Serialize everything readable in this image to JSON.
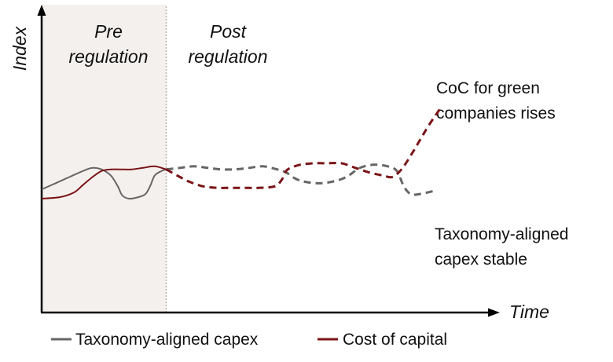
{
  "chart_data": {
    "type": "line",
    "title": "",
    "xlabel": "Time",
    "ylabel": "Index",
    "xlim": [
      0,
      100
    ],
    "ylim": [
      0,
      100
    ],
    "grid": false,
    "legend_position": "bottom",
    "phases": [
      {
        "name": "pre",
        "label_line1": "Pre",
        "label_line2": "regulation",
        "x_start": 0,
        "x_end": 27
      },
      {
        "name": "post",
        "label_line1": "Post",
        "label_line2": "regulation",
        "x_start": 27,
        "x_end": 100
      }
    ],
    "annotations": [
      {
        "name": "coc-annotation",
        "lines": [
          "CoC for green",
          "companies rises"
        ]
      },
      {
        "name": "capex-annotation",
        "lines": [
          "Taxonomy-aligned",
          "capex stable"
        ]
      }
    ],
    "series": [
      {
        "name": "Taxonomy-aligned capex",
        "color": "#666666",
        "points": [
          [
            0,
            40
          ],
          [
            3,
            42
          ],
          [
            6,
            44
          ],
          [
            9,
            46
          ],
          [
            11,
            47
          ],
          [
            13,
            46.5
          ],
          [
            15,
            44.5
          ],
          [
            16.5,
            41
          ],
          [
            17.5,
            38
          ],
          [
            19,
            37
          ],
          [
            21,
            37.5
          ],
          [
            22.5,
            38.5
          ],
          [
            23.5,
            41
          ],
          [
            24.5,
            44.5
          ],
          [
            26,
            46
          ],
          [
            27,
            46.5
          ],
          [
            30,
            47
          ],
          [
            33,
            47.5
          ],
          [
            36,
            47
          ],
          [
            39,
            46.5
          ],
          [
            42,
            46.5
          ],
          [
            45,
            47
          ],
          [
            48,
            47.5
          ],
          [
            51,
            46.5
          ],
          [
            53,
            45.5
          ],
          [
            55,
            43.5
          ],
          [
            57,
            42.5
          ],
          [
            60,
            42
          ],
          [
            63,
            42.5
          ],
          [
            66,
            44
          ],
          [
            69,
            47
          ],
          [
            72,
            48
          ],
          [
            75,
            47.5
          ],
          [
            77,
            46
          ],
          [
            78.5,
            41
          ],
          [
            80,
            38.5
          ],
          [
            82,
            38.5
          ],
          [
            85,
            39.5
          ]
        ]
      },
      {
        "name": "Cost of capital",
        "color": "#7a1416",
        "points": [
          [
            0,
            37
          ],
          [
            4,
            37.5
          ],
          [
            7,
            39
          ],
          [
            9,
            41.5
          ],
          [
            11,
            44
          ],
          [
            13,
            46
          ],
          [
            15,
            46.5
          ],
          [
            17,
            46.5
          ],
          [
            19.5,
            46.5
          ],
          [
            22,
            47
          ],
          [
            24.5,
            47.5
          ],
          [
            27,
            46.5
          ],
          [
            30,
            44
          ],
          [
            32,
            42.5
          ],
          [
            35,
            41
          ],
          [
            38,
            40.5
          ],
          [
            41,
            40.5
          ],
          [
            44,
            40.5
          ],
          [
            47,
            40.5
          ],
          [
            50.5,
            41
          ],
          [
            52,
            43
          ],
          [
            53,
            46
          ],
          [
            54,
            47
          ],
          [
            56,
            48
          ],
          [
            59,
            48.5
          ],
          [
            62,
            48.5
          ],
          [
            65,
            48.5
          ],
          [
            68,
            47
          ],
          [
            71,
            45.5
          ],
          [
            74,
            44.5
          ],
          [
            76,
            44
          ],
          [
            78,
            46.5
          ],
          [
            80,
            51
          ],
          [
            82,
            56
          ],
          [
            84,
            61
          ],
          [
            86.5,
            66.5
          ]
        ]
      }
    ]
  },
  "legend": [
    {
      "name": "legend-capex",
      "label": "Taxonomy-aligned capex",
      "color": "#666666"
    },
    {
      "name": "legend-coc",
      "label": "Cost of capital",
      "color": "#7a1416"
    }
  ]
}
